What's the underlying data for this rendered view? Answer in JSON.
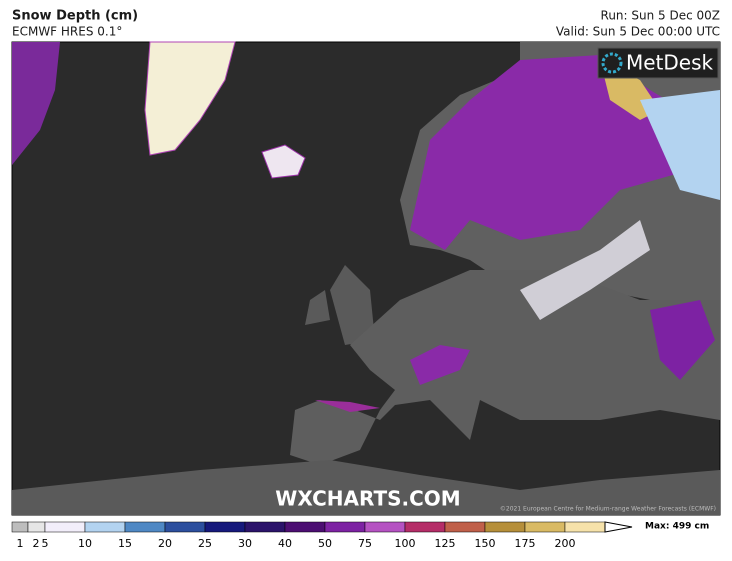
{
  "header": {
    "title": "Snow Depth (cm)",
    "model": "ECMWF HRES 0.1°",
    "run": "Run: Sun 5 Dec 00Z",
    "valid": "Valid: Sun 5 Dec 00:00 UTC"
  },
  "logo": "MetDesk",
  "watermark": "WXCHARTS.COM",
  "copyright": "©2021 European Centre for Medium-range Weather Forecasts (ECMWF)",
  "legend": {
    "labels": [
      "1",
      "2",
      "5",
      "10",
      "15",
      "20",
      "25",
      "30",
      "40",
      "50",
      "75",
      "100",
      "125",
      "150",
      "175",
      "200"
    ],
    "colors": [
      "#bdbdbd",
      "#e6e6e6",
      "#f2eefa",
      "#b3d3f0",
      "#4f88c4",
      "#2c4f9e",
      "#16197c",
      "#2b136a",
      "#4c0e72",
      "#7d22a3",
      "#b552c2",
      "#b52d68",
      "#c0604a",
      "#b68f3a",
      "#d9ba64",
      "#f6e2aa"
    ],
    "max": "Max: 499 cm"
  }
}
